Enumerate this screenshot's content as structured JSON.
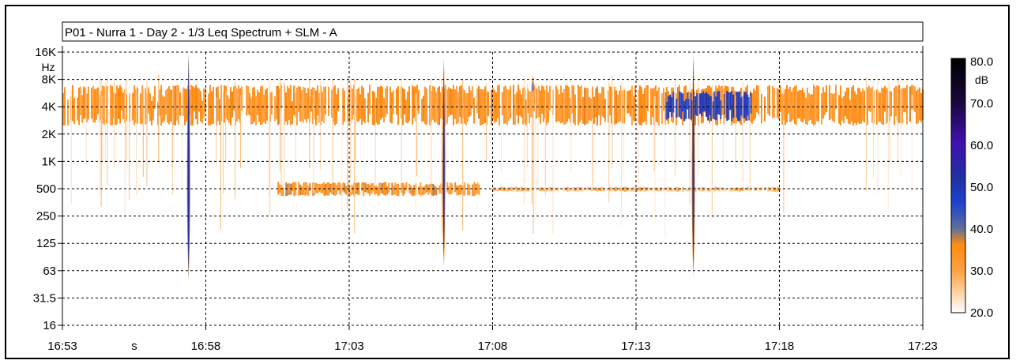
{
  "chart_data": {
    "type": "heatmap",
    "title": "P01 - Nurra 1 - Day 2 - 1/3 Leq Spectrum + SLM - A",
    "xlabel": "s",
    "ylabel": "Hz",
    "x_ticks": [
      "16:53",
      "16:58",
      "17:03",
      "17:08",
      "17:13",
      "17:18",
      "17:23"
    ],
    "x_range_minutes": [
      0,
      30
    ],
    "y_ticks": [
      "16K",
      "8K",
      "4K",
      "2K",
      "1K",
      "500",
      "250",
      "125",
      "63",
      "31.5",
      "16"
    ],
    "y_scale": "log",
    "grid": true,
    "colorbar": {
      "unit": "dB",
      "ticks": [
        "80.0",
        "70.0",
        "60.0",
        "50.0",
        "40.0",
        "30.0",
        "20.0"
      ],
      "range": [
        20,
        80
      ],
      "stops": [
        {
          "value": 20,
          "color": "#ffffff"
        },
        {
          "value": 30,
          "color": "#ffa040"
        },
        {
          "value": 36,
          "color": "#ff8c10"
        },
        {
          "value": 40,
          "color": "#5a6f9a"
        },
        {
          "value": 46,
          "color": "#2040d0"
        },
        {
          "value": 52,
          "color": "#2030a0"
        },
        {
          "value": 60,
          "color": "#4010b0"
        },
        {
          "value": 70,
          "color": "#180838"
        },
        {
          "value": 80,
          "color": "#000000"
        }
      ]
    },
    "features": [
      {
        "kind": "band",
        "t_start": 0,
        "t_end": 30,
        "f_low": 2500,
        "f_high": 7000,
        "level": 32
      },
      {
        "kind": "band",
        "t_start": 21.0,
        "t_end": 24.0,
        "f_low": 2800,
        "f_high": 6000,
        "level": 46
      },
      {
        "kind": "band",
        "t_start": 7.5,
        "t_end": 14.5,
        "f_low": 420,
        "f_high": 600,
        "level": 33
      },
      {
        "kind": "band",
        "t_start": 15.0,
        "t_end": 25.0,
        "f_low": 470,
        "f_high": 530,
        "level": 26
      },
      {
        "kind": "event",
        "t": 4.4,
        "f_low": 50,
        "f_high": 16000,
        "level": 52
      },
      {
        "kind": "event",
        "t": 13.3,
        "f_low": 70,
        "f_high": 14000,
        "level": 50
      },
      {
        "kind": "event",
        "t": 22.0,
        "f_low": 55,
        "f_high": 16000,
        "level": 51
      },
      {
        "kind": "event",
        "t": 16.4,
        "f_low": 4500,
        "f_high": 9000,
        "level": 45
      }
    ]
  }
}
